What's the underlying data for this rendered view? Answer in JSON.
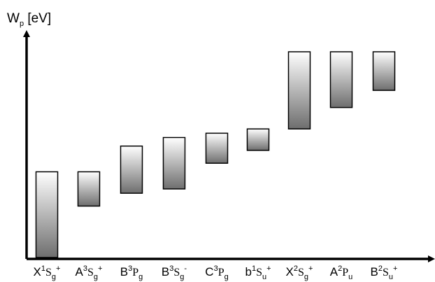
{
  "chart_data": {
    "type": "floating-bar",
    "ylabel": {
      "base": "W",
      "sub": "p",
      "rest": " [eV]"
    },
    "title": "",
    "grid": false,
    "legend": "none",
    "ylim": [
      0,
      10
    ],
    "categories": [
      {
        "pre": "X",
        "sup": "1",
        "sym": "S",
        "sub": "g",
        "post": "+"
      },
      {
        "pre": "A",
        "sup": "3",
        "sym": "S",
        "sub": "g",
        "post": "+"
      },
      {
        "pre": "B",
        "sup": "3",
        "sym": "P",
        "sub": "g",
        "post": ""
      },
      {
        "pre": "B",
        "sup": "3",
        "sym": "S",
        "sub": "g",
        "post": "-"
      },
      {
        "pre": "C",
        "sup": "3",
        "sym": "P",
        "sub": "g",
        "post": ""
      },
      {
        "pre": "b",
        "sup": "1",
        "sym": "S",
        "sub": "u",
        "post": "+"
      },
      {
        "pre": "X",
        "sup": "2",
        "sym": "S",
        "sub": "g",
        "post": "+"
      },
      {
        "pre": "A",
        "sup": "2",
        "sym": "P",
        "sub": "u",
        "post": ""
      },
      {
        "pre": "B",
        "sup": "2",
        "sym": "S",
        "sub": "u",
        "post": "+"
      }
    ],
    "ranges": [
      [
        0.0,
        4.0
      ],
      [
        2.4,
        4.0
      ],
      [
        3.0,
        5.2
      ],
      [
        3.2,
        5.6
      ],
      [
        4.4,
        5.8
      ],
      [
        5.0,
        6.0
      ],
      [
        6.0,
        9.6
      ],
      [
        7.0,
        9.6
      ],
      [
        7.8,
        9.6
      ]
    ],
    "colors": {
      "top": "#ffffff",
      "bottom": "#6e6e6e",
      "stroke": "#000000"
    }
  }
}
